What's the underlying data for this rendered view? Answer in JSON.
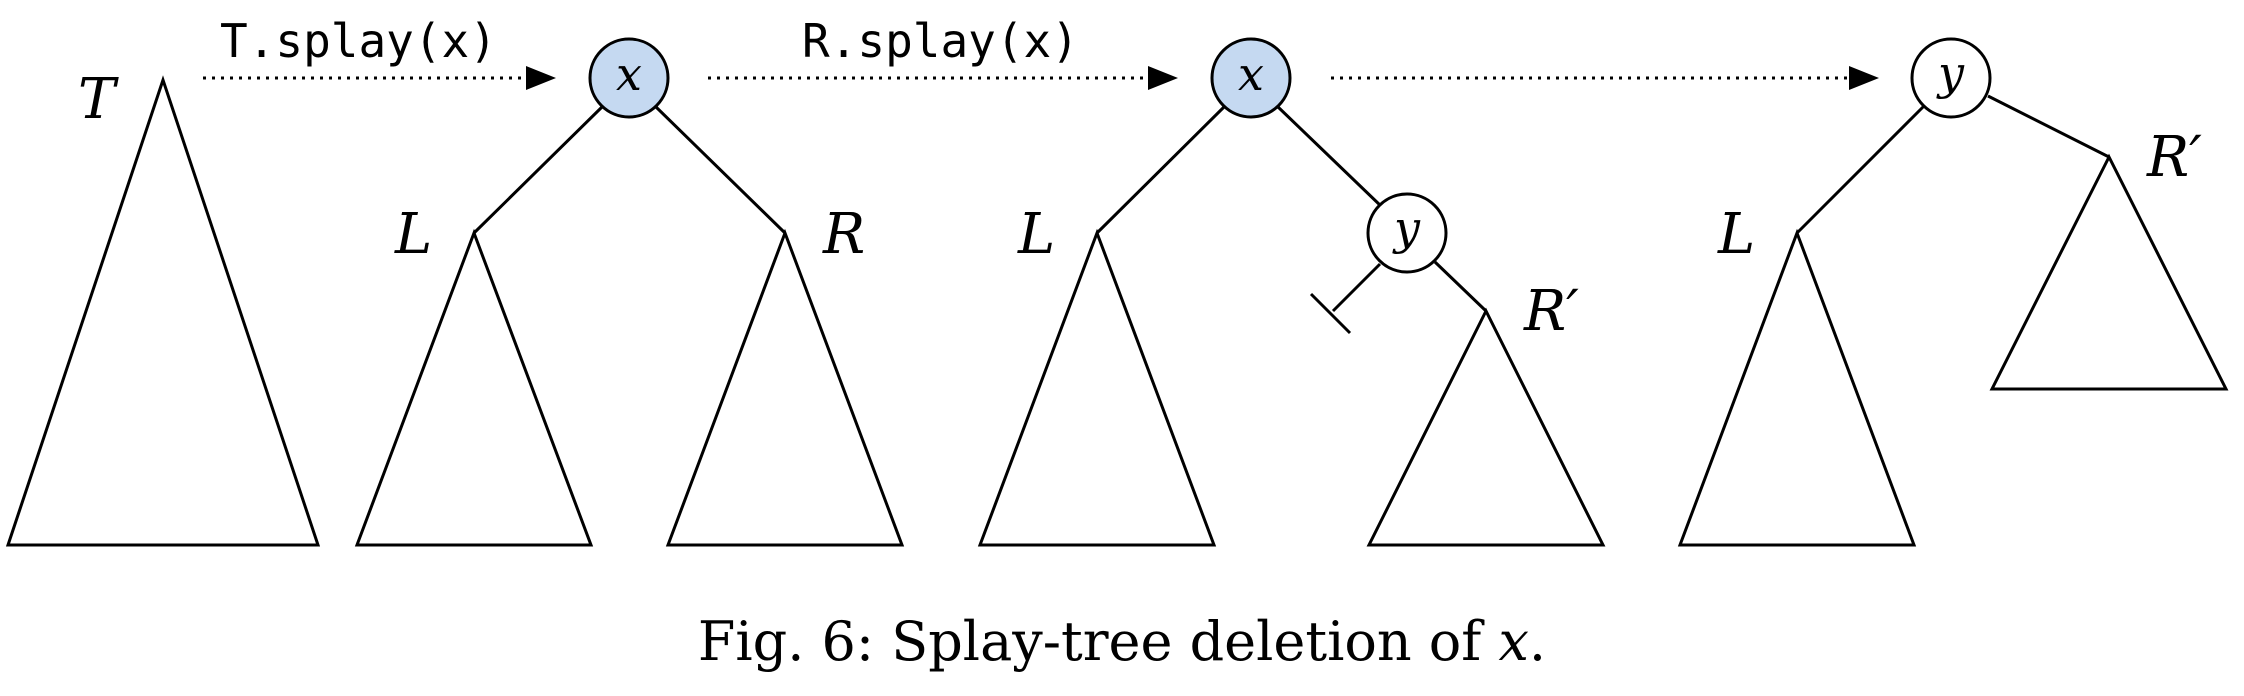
{
  "operations": {
    "first": "T.splay(x)",
    "second": "R.splay(x)"
  },
  "tree_labels": {
    "T": "T",
    "L": "L",
    "R": "R",
    "R_prime": "R′"
  },
  "nodes": {
    "x": "x",
    "y": "y"
  },
  "colors": {
    "highlight_fill": "#c5d9f1",
    "plain_fill": "#ffffff",
    "stroke": "#000000"
  },
  "caption": {
    "prefix": "Fig. 6: Splay-tree deletion of ",
    "variable": "x",
    "suffix": "."
  }
}
